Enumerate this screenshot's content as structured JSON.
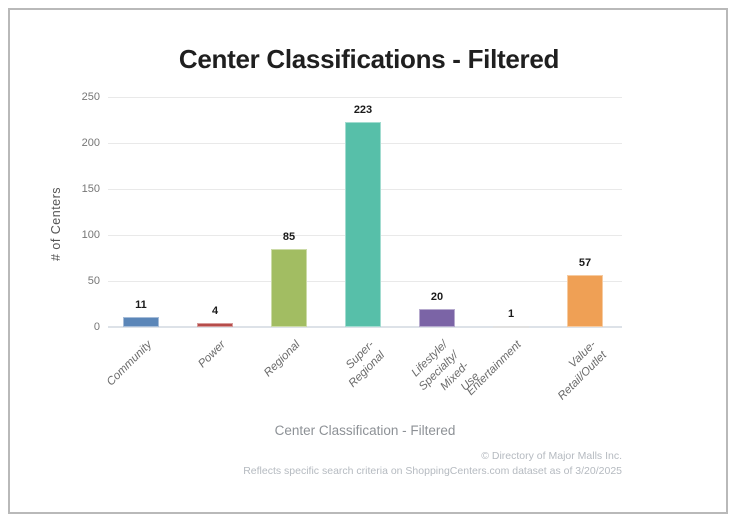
{
  "title": "Center Classifications - Filtered",
  "chart_data": {
    "type": "bar",
    "title": "Center Classifications - Filtered",
    "categories": [
      "Community",
      "Power",
      "Regional",
      "Super-Regional",
      "Lifestyle/\nSpecialty/\nMixed-Use",
      "Entertainment",
      "Value-Retail/Outlet"
    ],
    "values": [
      11,
      4,
      85,
      223,
      20,
      1,
      57
    ],
    "value_labels": [
      "11",
      "4",
      "85",
      "223",
      "20",
      "1",
      "57"
    ],
    "bar_colors": [
      "#5b86b8",
      "#b64c4a",
      "#a2bd62",
      "#57bfa9",
      "#7b64a6",
      "#c9c9c9",
      "#efa055"
    ],
    "xlabel": "Center Classification - Filtered",
    "ylabel": "# of Centers",
    "ylim": [
      0,
      250
    ],
    "yticks": [
      0,
      50,
      100,
      150,
      200,
      250
    ],
    "grid": true,
    "legend": "none"
  },
  "footer": {
    "line1": "© Directory of Major Malls Inc.",
    "line2": "Reflects specific search criteria on ShoppingCenters.com dataset as of 3/20/2025"
  },
  "colors": {
    "frame_border": "#b9b9b9",
    "gridline": "#e9e9e9",
    "baseline": "#dde2e8",
    "title_text": "#1f1f1f",
    "axis_text": "#767676",
    "footer_text": "#b5bac0"
  }
}
